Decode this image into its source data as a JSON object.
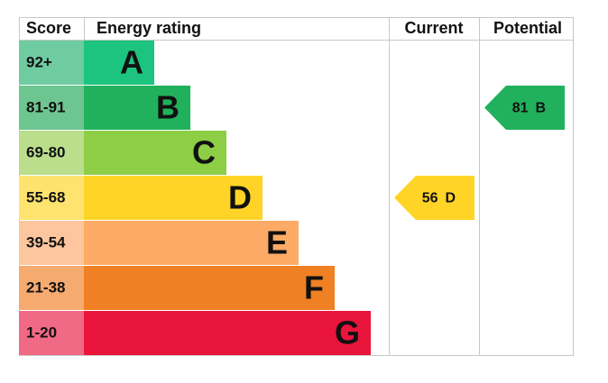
{
  "headers": {
    "score": "Score",
    "rating": "Energy rating",
    "current": "Current",
    "potential": "Potential"
  },
  "rows": [
    {
      "score": "92+",
      "letter": "A",
      "color": "#1cc47f",
      "light": "#6fcba0"
    },
    {
      "score": "81-91",
      "letter": "B",
      "color": "#21b15c",
      "light": "#6dc58f"
    },
    {
      "score": "69-80",
      "letter": "C",
      "color": "#8dce46",
      "light": "#bade8c"
    },
    {
      "score": "55-68",
      "letter": "D",
      "color": "#ffd426",
      "light": "#ffe36f"
    },
    {
      "score": "39-54",
      "letter": "E",
      "color": "#fcaa65",
      "light": "#fdc69e"
    },
    {
      "score": "21-38",
      "letter": "F",
      "color": "#ef8023",
      "light": "#f5aa70"
    },
    {
      "score": "1-20",
      "letter": "G",
      "color": "#e9153b",
      "light": "#f06a85"
    }
  ],
  "current": {
    "value": 56,
    "letter": "D"
  },
  "potential": {
    "value": 81,
    "letter": "B"
  }
}
